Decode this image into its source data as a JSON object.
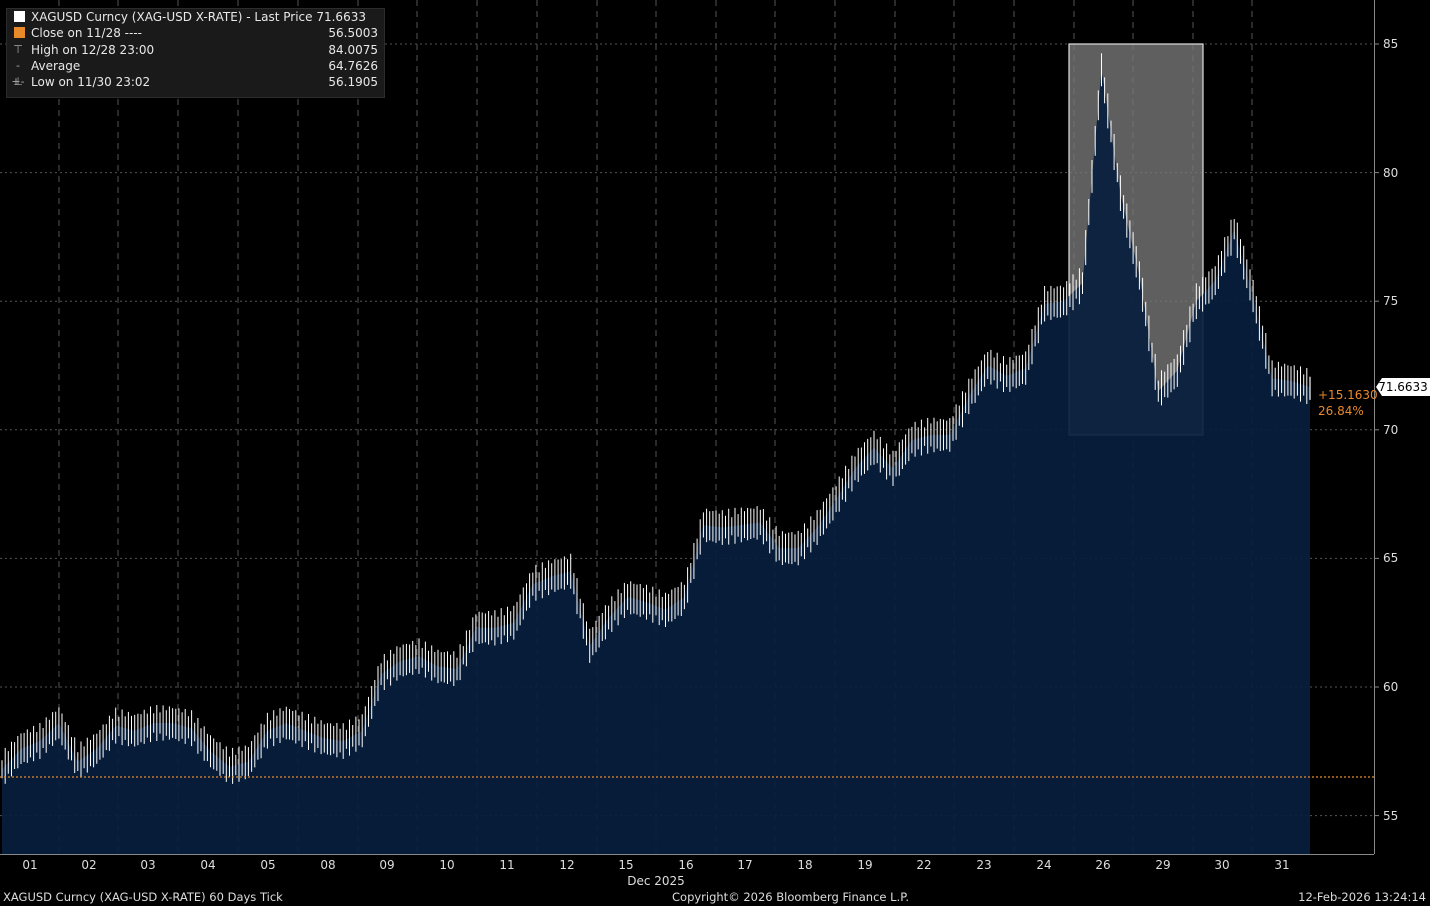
{
  "legend": {
    "title": "XAGUSD Curncy (XAG-USD X-RATE) - Last Price",
    "title_value": "71.6633",
    "close_label": "Close on 11/28 ----",
    "close_value": "56.5003",
    "high_label": "High on 12/28 23:00",
    "high_value": "84.0075",
    "avg_label": "Average",
    "avg_value": "64.7626",
    "low_label": "Low on 11/30 23:02",
    "low_value": "56.1905"
  },
  "last_price_box": "71.6633",
  "change_abs": "+15.1630",
  "change_pct": "26.84%",
  "footer": {
    "left": "XAGUSD Curncy (XAG-USD X-RATE) 60 Days Tick",
    "center": "Copyright© 2026 Bloomberg Finance L.P.",
    "right": "12-Feb-2026 13:24:14"
  },
  "colors": {
    "background": "#000000",
    "area_fill": "#071e3d",
    "price_line": "#ffffff",
    "close_line": "#e8892a",
    "highlight": "#7a7a7a",
    "grid": "#555555"
  },
  "chart_data": {
    "type": "area",
    "title": "XAGUSD Curncy (XAG-USD X-RATE) - Last Price",
    "xlabel": "Dec 2025",
    "ylabel": "",
    "ylim": [
      53.5,
      86.5
    ],
    "y_ticks": [
      55,
      60,
      65,
      70,
      75,
      80,
      85
    ],
    "x_tick_labels": [
      "01",
      "02",
      "03",
      "04",
      "05",
      "08",
      "09",
      "10",
      "11",
      "12",
      "15",
      "16",
      "17",
      "18",
      "19",
      "22",
      "23",
      "24",
      "26",
      "29",
      "30",
      "31"
    ],
    "month_label": "Dec 2025",
    "reference_lines": [
      {
        "name": "Close on 11/28",
        "value": 56.5003
      }
    ],
    "highlight_range": {
      "from_day": "26",
      "to_day": "29",
      "y_from": 69.8,
      "y_to": 85.0
    },
    "last_price": 71.6633,
    "high": 84.0075,
    "low": 56.1905,
    "average": 64.7626,
    "series": [
      {
        "x": [
          "11/30",
          "12/01",
          "12/01",
          "12/01",
          "12/02",
          "12/02",
          "12/02",
          "12/03",
          "12/03",
          "12/03",
          "12/04",
          "12/04",
          "12/04",
          "12/05",
          "12/05",
          "12/05",
          "12/08",
          "12/08",
          "12/08",
          "12/09",
          "12/09",
          "12/09",
          "12/10",
          "12/10",
          "12/10",
          "12/11",
          "12/11",
          "12/11",
          "12/12",
          "12/12",
          "12/12",
          "12/15",
          "12/15",
          "12/15",
          "12/16",
          "12/16",
          "12/16",
          "12/17",
          "12/17",
          "12/17",
          "12/18",
          "12/18",
          "12/18",
          "12/19",
          "12/19",
          "12/19",
          "12/22",
          "12/22",
          "12/22",
          "12/23",
          "12/23",
          "12/23",
          "12/24",
          "12/24",
          "12/24",
          "12/26",
          "12/26",
          "12/26",
          "12/28",
          "12/28",
          "12/28",
          "12/29",
          "12/29",
          "12/29",
          "12/30",
          "12/30",
          "12/30",
          "12/31",
          "12/31",
          "12/31"
        ],
        "values": [
          56.8,
          57.6,
          57.9,
          58.6,
          57.1,
          57.6,
          58.5,
          58.3,
          58.6,
          58.6,
          58.4,
          57.5,
          56.9,
          57.1,
          58.3,
          58.6,
          58.3,
          58.0,
          57.9,
          58.3,
          60.5,
          61.0,
          61.2,
          60.8,
          60.7,
          62.3,
          62.3,
          62.5,
          64.0,
          64.3,
          64.5,
          61.6,
          62.7,
          63.5,
          63.3,
          63.0,
          63.5,
          66.3,
          66.2,
          66.3,
          66.4,
          65.4,
          65.4,
          66.2,
          67.3,
          68.5,
          69.3,
          68.5,
          69.6,
          69.8,
          69.8,
          71.3,
          72.5,
          72.1,
          72.4,
          74.9,
          75.0,
          75.7,
          84.0,
          79.2,
          76.0,
          71.5,
          72.3,
          75.0,
          75.8,
          77.8,
          75.2,
          72.0,
          71.9,
          71.6633
        ]
      }
    ]
  }
}
